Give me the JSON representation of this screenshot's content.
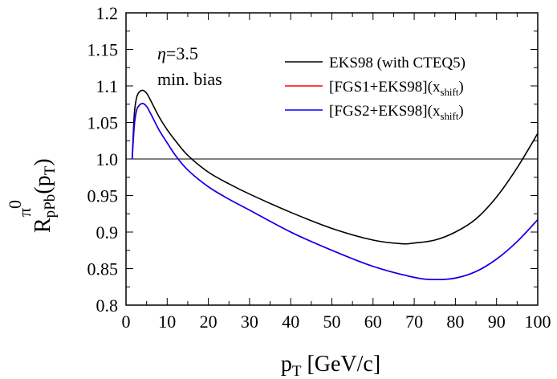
{
  "chart_data": {
    "type": "line",
    "xlim": [
      0,
      100
    ],
    "ylim": [
      0.8,
      1.2
    ],
    "x_ticks": [
      0,
      10,
      20,
      30,
      40,
      50,
      60,
      70,
      80,
      90,
      100
    ],
    "y_ticks": [
      "0.8",
      "0.85",
      "0.9",
      "0.95",
      "1.0",
      "1.05",
      "1.1",
      "1.15",
      "1.2"
    ],
    "reference_line": 1.0,
    "xlabel": {
      "main": "p",
      "sub": "T",
      "rest": " [GeV/c]"
    },
    "ylabel": {
      "main": "R",
      "sub": "pPb",
      "sup": "π",
      "sup2": "0",
      "rest_open": "(p",
      "rest_sub": "T",
      "rest_close": ")"
    },
    "annotations": [
      {
        "eta": "η",
        "text": "=3.5"
      },
      {
        "text": "min. bias"
      }
    ],
    "legend_position": "top-right",
    "series": [
      {
        "name": "EKS98 (with CTEQ5)",
        "color": "#000000",
        "x": [
          1.5,
          2,
          2.5,
          3,
          4,
          5,
          6,
          8,
          10,
          12,
          15,
          20,
          25,
          30,
          40,
          50,
          60,
          67,
          70,
          75,
          80,
          85,
          90,
          95,
          100
        ],
        "y": [
          1.0,
          1.06,
          1.082,
          1.09,
          1.094,
          1.09,
          1.08,
          1.058,
          1.04,
          1.025,
          1.005,
          0.982,
          0.966,
          0.952,
          0.927,
          0.905,
          0.889,
          0.884,
          0.885,
          0.889,
          0.9,
          0.918,
          0.948,
          0.988,
          1.035
        ]
      },
      {
        "name": "[FGS1+EKS98](x",
        "name_sub": "shift",
        "name_close": ")",
        "color": "#ff0000",
        "x": [
          1.5,
          2,
          2.5,
          3,
          4,
          5,
          6,
          8,
          10,
          12,
          15,
          20,
          25,
          30,
          40,
          50,
          60,
          70,
          75,
          80,
          85,
          90,
          95,
          100
        ],
        "y": [
          1.0,
          1.045,
          1.065,
          1.072,
          1.076,
          1.072,
          1.062,
          1.04,
          1.022,
          1.005,
          0.985,
          0.962,
          0.945,
          0.93,
          0.9,
          0.875,
          0.853,
          0.838,
          0.835,
          0.837,
          0.846,
          0.863,
          0.887,
          0.917
        ]
      },
      {
        "name": "[FGS2+EKS98](x",
        "name_sub": "shift",
        "name_close": ")",
        "color": "#0000ff",
        "x": [
          1.5,
          2,
          2.5,
          3,
          4,
          5,
          6,
          8,
          10,
          12,
          15,
          20,
          25,
          30,
          40,
          50,
          60,
          70,
          75,
          80,
          85,
          90,
          95,
          100
        ],
        "y": [
          1.0,
          1.045,
          1.065,
          1.072,
          1.076,
          1.072,
          1.062,
          1.04,
          1.022,
          1.005,
          0.985,
          0.962,
          0.945,
          0.93,
          0.9,
          0.875,
          0.853,
          0.838,
          0.835,
          0.837,
          0.846,
          0.863,
          0.887,
          0.917
        ]
      }
    ]
  }
}
